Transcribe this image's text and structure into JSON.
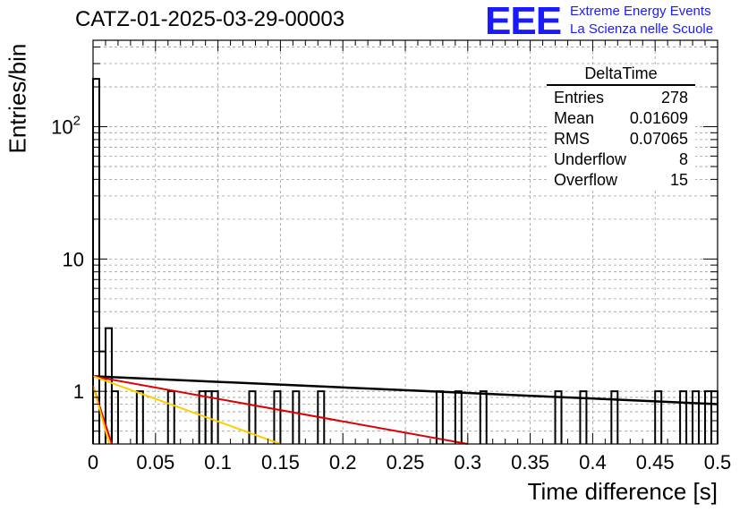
{
  "header": {
    "run_title": "CATZ-01-2025-03-29-00003",
    "logo_text": "EEE",
    "logo_line1": "Extreme Energy Events",
    "logo_line2": "La Scienza nelle Scuole",
    "logo_color": "#1a1aff"
  },
  "stats_box": {
    "title": "DeltaTime",
    "rows": [
      {
        "label": "Entries",
        "value": "278"
      },
      {
        "label": "Mean",
        "value": "0.01609"
      },
      {
        "label": "RMS",
        "value": "0.07065"
      },
      {
        "label": "Underflow",
        "value": "8"
      },
      {
        "label": "Overflow",
        "value": "15"
      }
    ]
  },
  "chart_data": {
    "type": "bar",
    "histogram": true,
    "xlabel": "Time difference [s]",
    "ylabel": "Entries/bin",
    "xlim": [
      0,
      0.5
    ],
    "ylim": [
      0.4,
      450
    ],
    "yscale": "log",
    "grid": true,
    "bin_width": 0.005,
    "x_ticks": [
      "0",
      "0.05",
      "0.1",
      "0.15",
      "0.2",
      "0.25",
      "0.3",
      "0.35",
      "0.4",
      "0.45",
      "0.5"
    ],
    "y_ticks": [
      "1",
      "10",
      "10^2"
    ],
    "bins": [
      {
        "x": 0.0,
        "count": 230
      },
      {
        "x": 0.005,
        "count": 2
      },
      {
        "x": 0.01,
        "count": 3
      },
      {
        "x": 0.015,
        "count": 1
      },
      {
        "x": 0.035,
        "count": 1
      },
      {
        "x": 0.06,
        "count": 1
      },
      {
        "x": 0.085,
        "count": 1
      },
      {
        "x": 0.09,
        "count": 1
      },
      {
        "x": 0.095,
        "count": 1
      },
      {
        "x": 0.125,
        "count": 1
      },
      {
        "x": 0.145,
        "count": 1
      },
      {
        "x": 0.16,
        "count": 1
      },
      {
        "x": 0.18,
        "count": 1
      },
      {
        "x": 0.275,
        "count": 1
      },
      {
        "x": 0.29,
        "count": 1
      },
      {
        "x": 0.31,
        "count": 1
      },
      {
        "x": 0.37,
        "count": 1
      },
      {
        "x": 0.39,
        "count": 1
      },
      {
        "x": 0.415,
        "count": 1
      },
      {
        "x": 0.45,
        "count": 1
      },
      {
        "x": 0.47,
        "count": 1
      },
      {
        "x": 0.48,
        "count": 1
      },
      {
        "x": 0.49,
        "count": 1
      },
      {
        "x": 0.495,
        "count": 1
      }
    ],
    "fit_curves": [
      {
        "color": "#000000",
        "points": [
          [
            0,
            1.3
          ],
          [
            0.5,
            0.8
          ]
        ]
      },
      {
        "color": "#dd0000",
        "points": [
          [
            0,
            1.3
          ],
          [
            0.3,
            0.4
          ]
        ]
      },
      {
        "color": "#ffcc00",
        "points": [
          [
            0,
            1.3
          ],
          [
            0.15,
            0.4
          ]
        ]
      },
      {
        "color": "#dd0000",
        "points": [
          [
            0,
            1.1
          ],
          [
            0.015,
            0.4
          ]
        ]
      },
      {
        "color": "#ffcc00",
        "points": [
          [
            0,
            1.1
          ],
          [
            0.013,
            0.4
          ]
        ]
      }
    ]
  }
}
